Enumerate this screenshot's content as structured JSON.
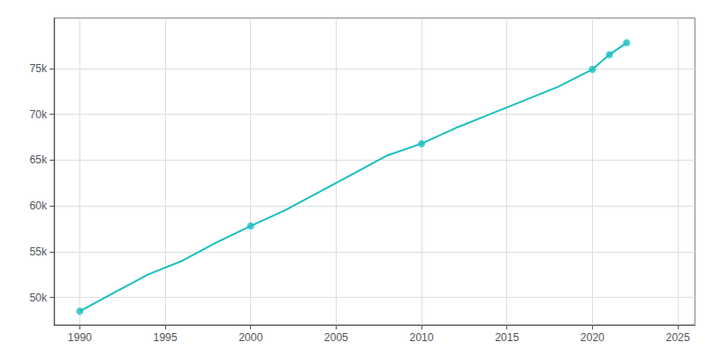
{
  "chart_data": {
    "type": "line",
    "x": [
      1990,
      1992,
      1994,
      1996,
      1998,
      2000,
      2002,
      2004,
      2006,
      2008,
      2010,
      2012,
      2014,
      2016,
      2018,
      2020,
      2021,
      2022
    ],
    "series": [
      {
        "type": "line",
        "color": "#1ABFBF",
        "values": [
          48500,
          50500,
          52500,
          54000,
          56000,
          57800,
          59500,
          61500,
          63500,
          65500,
          66788,
          68500,
          70000,
          71500,
          73000,
          74900,
          76500,
          77800
        ]
      },
      {
        "type": "scatter",
        "color": "#1ABFBF",
        "marker": "circle",
        "values": [
          48500,
          null,
          null,
          null,
          null,
          57800,
          null,
          null,
          null,
          null,
          66788,
          null,
          null,
          null,
          null,
          74900,
          76500,
          77800
        ]
      }
    ],
    "xlim": [
      1988.5,
      2026
    ],
    "xticks": [
      1990,
      1995,
      2000,
      2005,
      2010,
      2015,
      2020,
      2025
    ],
    "ylim": [
      47000,
      80500
    ],
    "yticks": [
      {
        "value": 50000,
        "label": "50k"
      },
      {
        "value": 55000,
        "label": "55k"
      },
      {
        "value": 60000,
        "label": "60k"
      },
      {
        "value": 65000,
        "label": "65k"
      },
      {
        "value": 70000,
        "label": "70k"
      },
      {
        "value": 75000,
        "label": "75k"
      }
    ],
    "grid": true
  }
}
